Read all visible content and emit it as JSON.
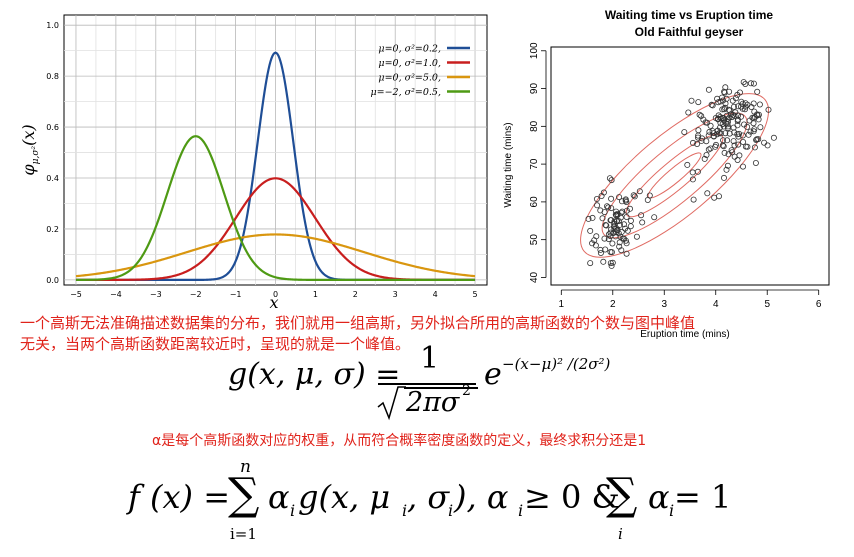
{
  "gaussian_chart": {
    "xlabel": "x",
    "ylabel": "φμ,σ²(x)",
    "ylabel_base": "φ",
    "ylabel_sub": "μ,σ²",
    "ylabel_rest": "(x)",
    "xticks": [
      "−5",
      "−4",
      "−3",
      "−2",
      "−1",
      "0",
      "1",
      "2",
      "3",
      "4",
      "5"
    ],
    "yticks": [
      "0.0",
      "0.2",
      "0.4",
      "0.6",
      "0.8",
      "1.0"
    ],
    "colors": {
      "blue": "#1f4e96",
      "red": "#c81e1e",
      "orange": "#d9960f",
      "green": "#4e9a14"
    }
  },
  "scatter_chart": {
    "title_line1": "Waiting time vs Eruption time",
    "title_line2": "Old Faithful geyser",
    "xlabel": "Eruption time (mins)",
    "ylabel": "Waiting time (mins)",
    "xticks": [
      "1",
      "2",
      "3",
      "4",
      "5",
      "6"
    ],
    "yticks": [
      "40",
      "50",
      "60",
      "70",
      "80",
      "90",
      "100"
    ]
  },
  "chart_data": [
    {
      "type": "line",
      "title": "",
      "xlabel": "x",
      "ylabel": "φμ,σ²(x)",
      "xlim": [
        -5.3,
        5.3
      ],
      "ylim": [
        -0.02,
        1.04
      ],
      "grid": true,
      "legend_position": "top-right",
      "series": [
        {
          "name": "μ=0,   σ²=0.2,",
          "mu": 0,
          "var": 0.2,
          "color": "#1f4e96"
        },
        {
          "name": "μ=0,   σ²=1.0,",
          "mu": 0,
          "var": 1.0,
          "color": "#c81e1e"
        },
        {
          "name": "μ=0,   σ²=5.0,",
          "mu": 0,
          "var": 5.0,
          "color": "#d9960f"
        },
        {
          "name": "μ=−2,  σ²=0.5,",
          "mu": -2,
          "var": 0.5,
          "color": "#4e9a14"
        }
      ]
    },
    {
      "type": "scatter",
      "title": "Waiting time vs Eruption time\nOld Faithful geyser",
      "xlabel": "Eruption time (mins)",
      "ylabel": "Waiting time (mins)",
      "xlim": [
        0.8,
        6.2
      ],
      "ylim": [
        38,
        101
      ],
      "grid": false,
      "clusters": [
        {
          "name": "",
          "center": [
            2.04,
            54.5
          ],
          "n": 100
        },
        {
          "name": "",
          "center": [
            4.29,
            80.0
          ],
          "n": 172
        }
      ],
      "contours": [
        {
          "center": [
            3.2,
            67
          ],
          "color": "#e06b63"
        }
      ]
    }
  ],
  "text": {
    "para1_line1": "一个高斯无法准确描述数据集的分布，我们就用一组高斯，另外拟合所用的高斯函数的个数与图中峰值",
    "para1_line2": "无关，当两个高斯函数距离较近时，呈现的就是一个峰值。",
    "alpha_note": "α是每个高斯函数对应的权重，从而符合概率密度函数的定义，最终求积分还是1"
  },
  "formulas": {
    "g_lhs": "g(x, μ, σ) =",
    "g_num": "1",
    "g_den": "2πσ",
    "g_den_exp": "2",
    "g_e": "e",
    "g_exp": "−(x−μ)² /(2σ²)",
    "f_lhs": "f (x) =",
    "sum_top": "n",
    "sum_bottom": "i=1",
    "f_mid": "α",
    "f_mid_sub": "i",
    "f_g": "g(x, μ",
    "f_g_sub1": "i",
    "f_g_sep": ", σ",
    "f_g_sub2": "i",
    "f_g_close": "), α",
    "f_a_sub": "i",
    "f_cond": " ≥ 0 & ",
    "sum2_bottom": "i",
    "f_end_a": "α",
    "f_end_sub": "i",
    "f_end": " = 1"
  }
}
